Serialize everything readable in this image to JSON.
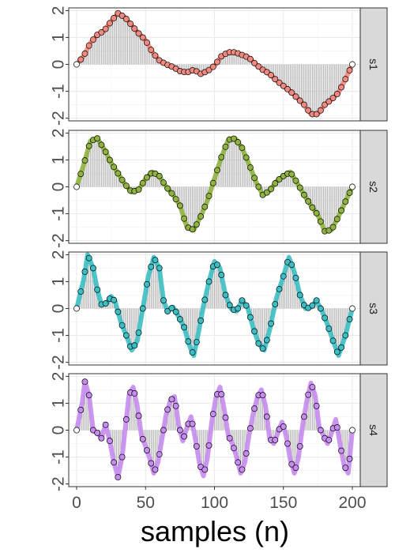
{
  "chart_data": {
    "type": "line",
    "xlabel": "samples (n)",
    "ylabel": "",
    "xlim": [
      0,
      200
    ],
    "x_ticks": [
      0,
      50,
      100,
      150,
      200
    ],
    "y_ticks": [
      -2,
      -1,
      0,
      1,
      2
    ],
    "ylim": [
      -2.1,
      2.1
    ],
    "grid": true,
    "n_samples": 201,
    "panels": [
      {
        "strip": "s1",
        "color": "#f08a80",
        "points": [
          [
            0,
            0.0
          ],
          [
            5,
            0.3
          ],
          [
            10,
            0.8
          ],
          [
            15,
            1.1
          ],
          [
            20,
            1.25
          ],
          [
            25,
            1.6
          ],
          [
            30,
            1.9
          ],
          [
            35,
            1.75
          ],
          [
            40,
            1.45
          ],
          [
            45,
            1.15
          ],
          [
            50,
            0.9
          ],
          [
            55,
            0.45
          ],
          [
            60,
            0.15
          ],
          [
            65,
            0.0
          ],
          [
            70,
            -0.1
          ],
          [
            75,
            -0.25
          ],
          [
            80,
            -0.3
          ],
          [
            85,
            -0.2
          ],
          [
            90,
            -0.35
          ],
          [
            95,
            -0.25
          ],
          [
            100,
            -0.05
          ],
          [
            105,
            0.3
          ],
          [
            110,
            0.45
          ],
          [
            115,
            0.45
          ],
          [
            120,
            0.35
          ],
          [
            125,
            0.25
          ],
          [
            130,
            0.0
          ],
          [
            135,
            -0.2
          ],
          [
            140,
            -0.35
          ],
          [
            145,
            -0.6
          ],
          [
            150,
            -0.8
          ],
          [
            155,
            -1.0
          ],
          [
            160,
            -1.25
          ],
          [
            165,
            -1.5
          ],
          [
            170,
            -1.85
          ],
          [
            175,
            -1.85
          ],
          [
            180,
            -1.5
          ],
          [
            185,
            -1.3
          ],
          [
            190,
            -1.05
          ],
          [
            195,
            -0.55
          ],
          [
            200,
            0.0
          ]
        ]
      },
      {
        "strip": "s2",
        "color": "#8fb33e",
        "points": [
          [
            0,
            0.0
          ],
          [
            5,
            0.8
          ],
          [
            10,
            1.7
          ],
          [
            15,
            1.8
          ],
          [
            20,
            1.4
          ],
          [
            25,
            0.9
          ],
          [
            30,
            0.5
          ],
          [
            35,
            0.1
          ],
          [
            40,
            -0.2
          ],
          [
            45,
            -0.1
          ],
          [
            50,
            0.3
          ],
          [
            55,
            0.55
          ],
          [
            60,
            0.4
          ],
          [
            65,
            0.0
          ],
          [
            70,
            -0.3
          ],
          [
            75,
            -0.7
          ],
          [
            80,
            -1.5
          ],
          [
            85,
            -1.6
          ],
          [
            90,
            -1.1
          ],
          [
            95,
            -0.5
          ],
          [
            100,
            0.3
          ],
          [
            105,
            1.1
          ],
          [
            110,
            1.75
          ],
          [
            115,
            1.8
          ],
          [
            120,
            1.45
          ],
          [
            125,
            0.85
          ],
          [
            130,
            0.2
          ],
          [
            135,
            -0.3
          ],
          [
            140,
            -0.15
          ],
          [
            145,
            0.2
          ],
          [
            150,
            0.4
          ],
          [
            155,
            0.55
          ],
          [
            160,
            0.15
          ],
          [
            165,
            -0.3
          ],
          [
            170,
            -0.7
          ],
          [
            175,
            -1.05
          ],
          [
            180,
            -1.65
          ],
          [
            185,
            -1.6
          ],
          [
            190,
            -1.1
          ],
          [
            195,
            -0.55
          ],
          [
            200,
            0.0
          ]
        ]
      },
      {
        "strip": "s3",
        "color": "#3cbfc4",
        "points": [
          [
            0,
            0.0
          ],
          [
            5,
            1.05
          ],
          [
            8,
            2.0
          ],
          [
            12,
            1.5
          ],
          [
            15,
            0.7
          ],
          [
            18,
            0.15
          ],
          [
            22,
            0.2
          ],
          [
            25,
            0.45
          ],
          [
            28,
            0.25
          ],
          [
            32,
            -0.5
          ],
          [
            36,
            -1.0
          ],
          [
            40,
            -1.55
          ],
          [
            44,
            -1.2
          ],
          [
            48,
            0.0
          ],
          [
            52,
            1.2
          ],
          [
            56,
            1.9
          ],
          [
            60,
            1.5
          ],
          [
            63,
            0.3
          ],
          [
            66,
            -0.1
          ],
          [
            70,
            0.05
          ],
          [
            74,
            -0.3
          ],
          [
            78,
            -0.7
          ],
          [
            82,
            -1.4
          ],
          [
            85,
            -1.75
          ],
          [
            88,
            -1.0
          ],
          [
            92,
            0.1
          ],
          [
            96,
            1.0
          ],
          [
            100,
            1.75
          ],
          [
            104,
            1.5
          ],
          [
            108,
            0.5
          ],
          [
            112,
            0.0
          ],
          [
            116,
            -0.1
          ],
          [
            120,
            0.3
          ],
          [
            124,
            0.05
          ],
          [
            128,
            -0.7
          ],
          [
            132,
            -1.3
          ],
          [
            136,
            -1.55
          ],
          [
            140,
            -0.8
          ],
          [
            145,
            0.4
          ],
          [
            150,
            1.2
          ],
          [
            154,
            1.9
          ],
          [
            158,
            1.35
          ],
          [
            162,
            0.5
          ],
          [
            166,
            0.0
          ],
          [
            170,
            0.05
          ],
          [
            174,
            0.3
          ],
          [
            178,
            -0.1
          ],
          [
            182,
            -0.6
          ],
          [
            186,
            -1.2
          ],
          [
            190,
            -1.75
          ],
          [
            195,
            -1.0
          ],
          [
            200,
            0.0
          ]
        ]
      },
      {
        "strip": "s4",
        "color": "#c78cf0",
        "points": [
          [
            0,
            0.0
          ],
          [
            4,
            1.0
          ],
          [
            6,
            1.8
          ],
          [
            9,
            1.3
          ],
          [
            12,
            0.0
          ],
          [
            15,
            -0.1
          ],
          [
            18,
            -0.3
          ],
          [
            21,
            0.2
          ],
          [
            24,
            -0.4
          ],
          [
            27,
            -1.2
          ],
          [
            30,
            -1.75
          ],
          [
            33,
            -1.0
          ],
          [
            36,
            0.4
          ],
          [
            38,
            1.3
          ],
          [
            41,
            1.6
          ],
          [
            44,
            0.9
          ],
          [
            47,
            -0.2
          ],
          [
            50,
            -0.6
          ],
          [
            53,
            -1.05
          ],
          [
            56,
            -1.6
          ],
          [
            59,
            -1.2
          ],
          [
            62,
            -0.3
          ],
          [
            65,
            0.6
          ],
          [
            68,
            1.1
          ],
          [
            71,
            1.25
          ],
          [
            74,
            0.2
          ],
          [
            77,
            -0.4
          ],
          [
            80,
            0.1
          ],
          [
            83,
            0.5
          ],
          [
            86,
            -0.3
          ],
          [
            89,
            -1.2
          ],
          [
            92,
            -1.7
          ],
          [
            95,
            -1.0
          ],
          [
            98,
            0.3
          ],
          [
            101,
            1.2
          ],
          [
            104,
            1.6
          ],
          [
            107,
            0.8
          ],
          [
            110,
            -0.2
          ],
          [
            113,
            -0.5
          ],
          [
            116,
            -1.0
          ],
          [
            119,
            -1.6
          ],
          [
            122,
            -1.2
          ],
          [
            125,
            -0.2
          ],
          [
            128,
            0.6
          ],
          [
            131,
            1.2
          ],
          [
            134,
            1.5
          ],
          [
            137,
            0.9
          ],
          [
            140,
            -0.3
          ],
          [
            143,
            -0.5
          ],
          [
            146,
            -0.1
          ],
          [
            149,
            0.3
          ],
          [
            152,
            -0.2
          ],
          [
            155,
            -1.1
          ],
          [
            158,
            -1.6
          ],
          [
            161,
            -1.0
          ],
          [
            164,
            0.2
          ],
          [
            167,
            1.1
          ],
          [
            170,
            1.75
          ],
          [
            173,
            1.3
          ],
          [
            176,
            0.1
          ],
          [
            179,
            -0.2
          ],
          [
            182,
            -0.5
          ],
          [
            185,
            -0.1
          ],
          [
            188,
            0.4
          ],
          [
            191,
            -0.5
          ],
          [
            194,
            -1.3
          ],
          [
            197,
            -1.6
          ],
          [
            200,
            0.0
          ]
        ]
      }
    ]
  }
}
